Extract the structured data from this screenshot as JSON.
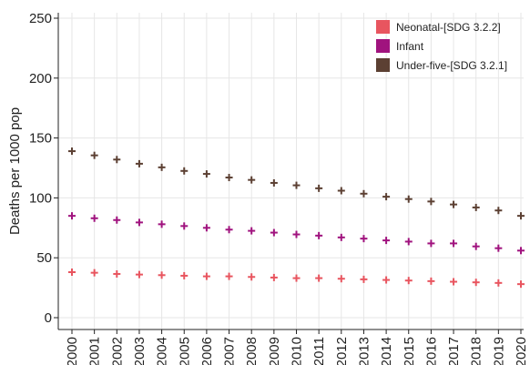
{
  "chart_data": {
    "type": "scatter",
    "title": "",
    "xlabel": "",
    "ylabel": "Deaths per 1000 pop",
    "ylim": [
      0,
      250
    ],
    "yticks": [
      0,
      50,
      100,
      150,
      200,
      250
    ],
    "grid": true,
    "legend_position": "top-right",
    "marker": "plus",
    "x": [
      "2000",
      "2001",
      "2002",
      "2003",
      "2004",
      "2005",
      "2006",
      "2007",
      "2008",
      "2009",
      "2010",
      "2011",
      "2012",
      "2013",
      "2014",
      "2015",
      "2016",
      "2017",
      "2018",
      "2019",
      "2020"
    ],
    "series": [
      {
        "name": "Neonatal-[SDG 3.2.2]",
        "color": "#e8555f",
        "values": [
          38,
          37.5,
          36.5,
          36,
          35.5,
          35,
          34.5,
          34.5,
          34,
          33.5,
          33,
          33,
          32.5,
          32,
          31.5,
          31,
          30.5,
          30,
          29.5,
          29,
          28
        ]
      },
      {
        "name": "Infant",
        "color": "#a0137e",
        "values": [
          85,
          83,
          81.5,
          79.5,
          78,
          76.5,
          75,
          73.5,
          72.5,
          71,
          69.5,
          68.5,
          67,
          66,
          64.5,
          63.5,
          62,
          62,
          59.5,
          58,
          56
        ]
      },
      {
        "name": "Under-five-[SDG 3.2.1]",
        "color": "#5c4033",
        "values": [
          139,
          135.5,
          132,
          128.5,
          125.5,
          122.5,
          120,
          117,
          115,
          112.5,
          110.5,
          108,
          106,
          103.5,
          101,
          99,
          97,
          94.5,
          92,
          89.5,
          85
        ]
      }
    ]
  }
}
